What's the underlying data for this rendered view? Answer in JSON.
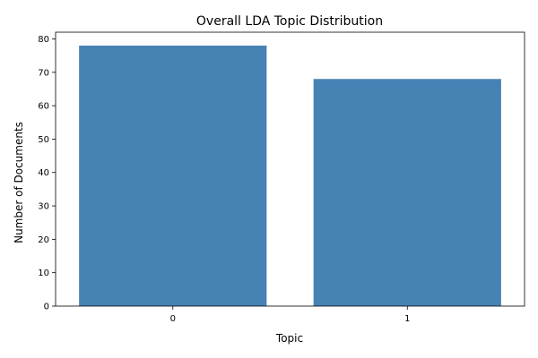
{
  "chart_data": {
    "type": "bar",
    "title": "Overall LDA Topic Distribution",
    "xlabel": "Topic",
    "ylabel": "Number of Documents",
    "categories": [
      "0",
      "1"
    ],
    "values": [
      78,
      68
    ],
    "ylim": [
      0,
      82
    ],
    "yticks": [
      0,
      10,
      20,
      30,
      40,
      50,
      60,
      70,
      80
    ],
    "grid": false,
    "bar_color": "#4682b4"
  }
}
